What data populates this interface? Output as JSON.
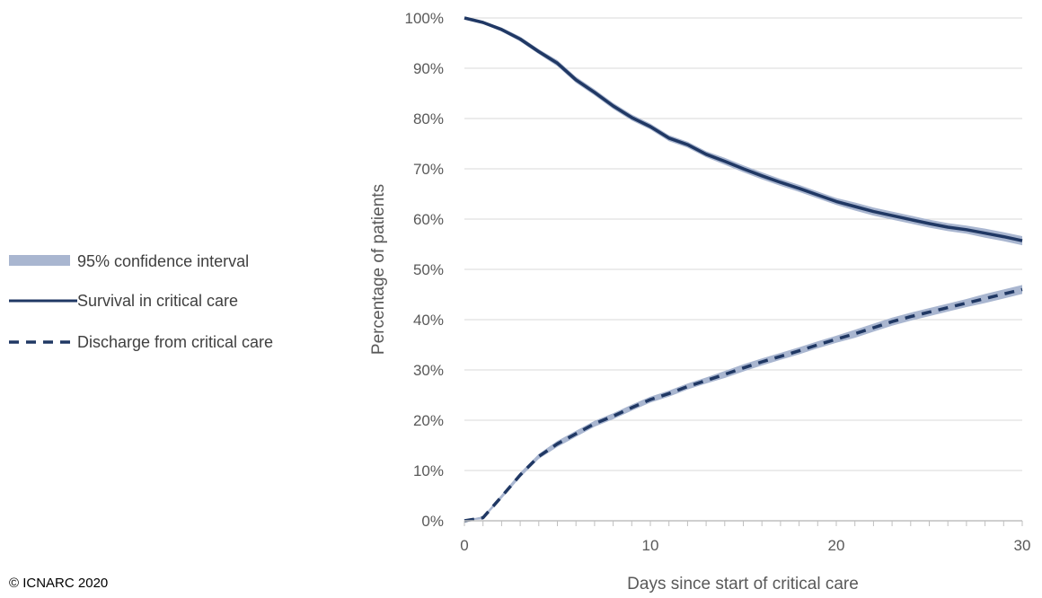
{
  "copyright": "© ICNARC 2020",
  "chart_data": {
    "type": "line",
    "xlabel": "Days since start of critical care",
    "ylabel": "Percentage of patients",
    "xlim": [
      0,
      30
    ],
    "ylim": [
      0,
      100
    ],
    "x_ticks": [
      0,
      10,
      20,
      30
    ],
    "y_ticks": [
      "0%",
      "10%",
      "20%",
      "30%",
      "40%",
      "50%",
      "60%",
      "70%",
      "80%",
      "90%",
      "100%"
    ],
    "y_tick_values": [
      0,
      10,
      20,
      30,
      40,
      50,
      60,
      70,
      80,
      90,
      100
    ],
    "grid": "horizontal",
    "legend_position": "left",
    "x": [
      0,
      1,
      2,
      3,
      4,
      5,
      6,
      7,
      8,
      9,
      10,
      11,
      12,
      13,
      14,
      15,
      16,
      17,
      18,
      19,
      20,
      21,
      22,
      23,
      24,
      25,
      26,
      27,
      28,
      29,
      30
    ],
    "series": [
      {
        "name": "Survival in critical care",
        "style": "solid",
        "values": [
          100,
          99.1,
          97.7,
          95.8,
          93.3,
          91,
          87.7,
          85.2,
          82.5,
          80.2,
          78.4,
          76.1,
          74.8,
          72.9,
          71.5,
          70,
          68.6,
          67.3,
          66.1,
          64.8,
          63.5,
          62.5,
          61.5,
          60.7,
          59.9,
          59.1,
          58.4,
          57.9,
          57.2,
          56.5,
          55.7
        ]
      },
      {
        "name": "Discharge from critical care",
        "style": "dashed",
        "values": [
          0,
          0.6,
          4.8,
          9.1,
          12.8,
          15.3,
          17.3,
          19.3,
          20.8,
          22.5,
          24.1,
          25.3,
          26.7,
          27.9,
          29.1,
          30.4,
          31.6,
          32.7,
          33.8,
          35,
          36.1,
          37.2,
          38.4,
          39.6,
          40.6,
          41.5,
          42.4,
          43.3,
          44.2,
          45.1,
          46
        ]
      }
    ],
    "ci_band": {
      "name": "95% confidence interval",
      "half_width": [
        0.1,
        0.3,
        0.4,
        0.5,
        0.5,
        0.6,
        0.6,
        0.6,
        0.6,
        0.6,
        0.6,
        0.6,
        0.6,
        0.6,
        0.7,
        0.7,
        0.7,
        0.7,
        0.7,
        0.7,
        0.7,
        0.8,
        0.8,
        0.8,
        0.8,
        0.8,
        0.8,
        0.8,
        0.9,
        0.9,
        0.9
      ]
    },
    "colors": {
      "line": "#203864",
      "band": "#a9b6d0",
      "grid": "#d9d9d9",
      "axis": "#bfbfbf"
    }
  }
}
